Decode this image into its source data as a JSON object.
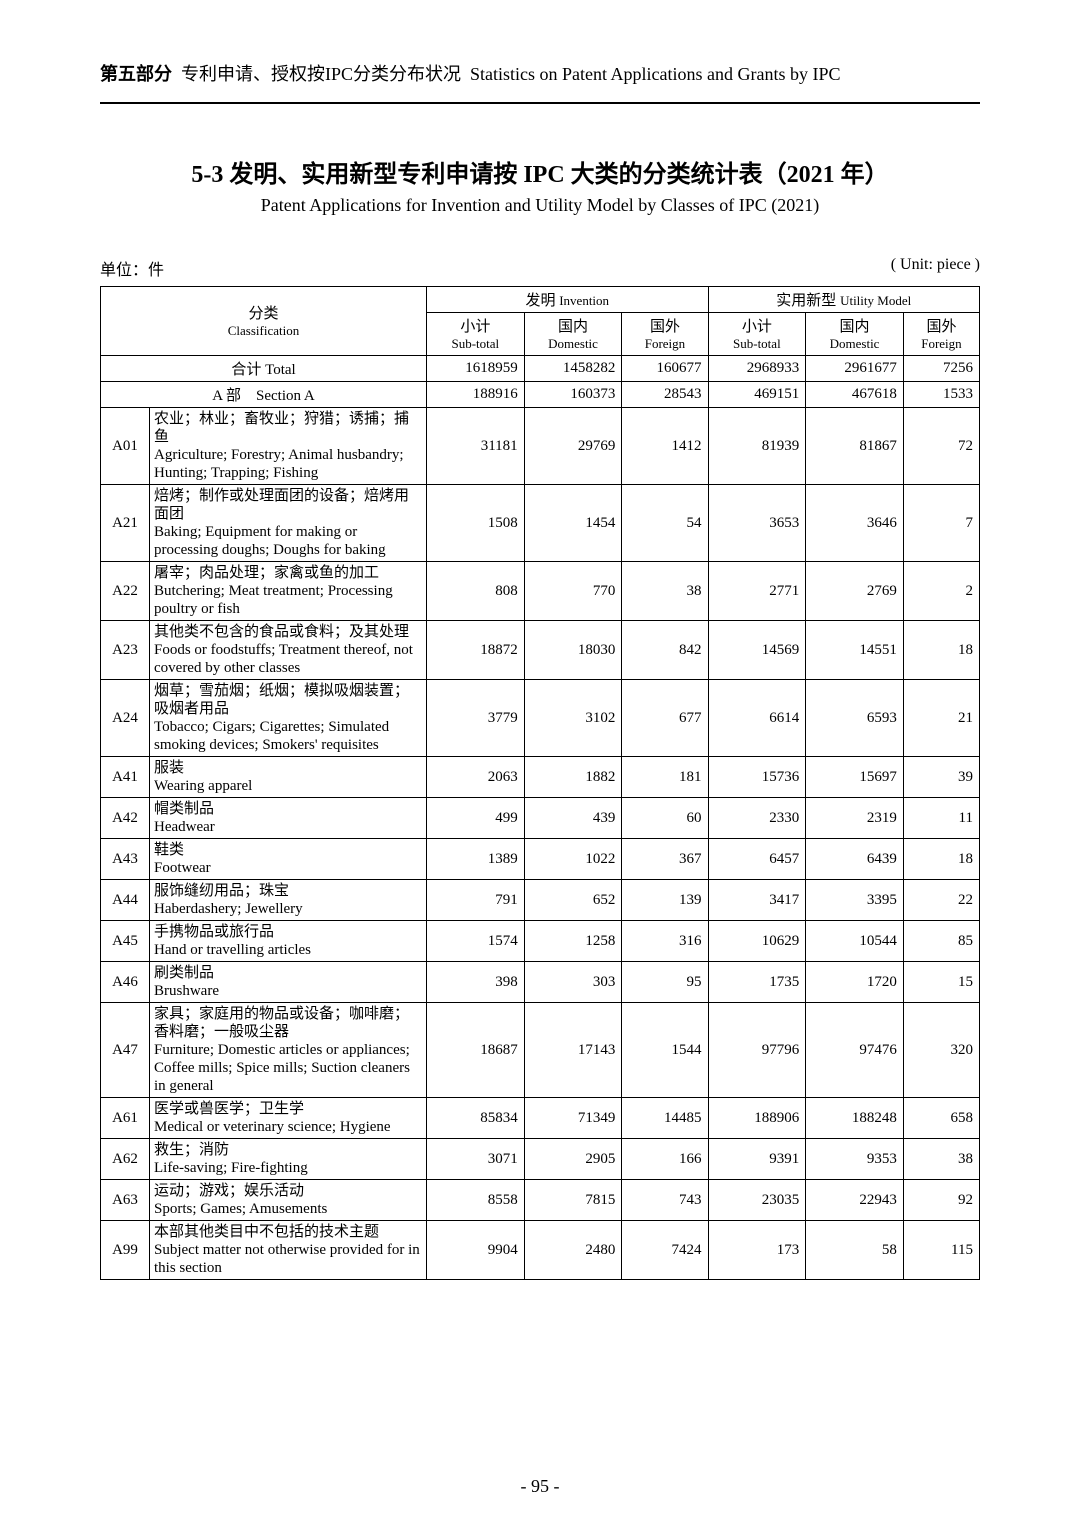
{
  "header": {
    "part_cn": "第五部分",
    "part_rest_cn": "专利申请、授权按IPC分类分布状况",
    "part_en": "Statistics on Patent Applications and Grants by IPC"
  },
  "title": {
    "number": "5-3",
    "cn": "发明、实用新型专利申请按 IPC 大类的分类统计表（2021 年）",
    "en": "Patent Applications for Invention and Utility Model by Classes of IPC (2021)"
  },
  "unit": {
    "left": "单位：件",
    "right": "( Unit: piece )"
  },
  "columns": {
    "classification_cn": "分类",
    "classification_en": "Classification",
    "invention_cn": "发明",
    "invention_en": "Invention",
    "utility_cn": "实用新型",
    "utility_en": "Utility Model",
    "subtotal_cn": "小计",
    "subtotal_en": "Sub-total",
    "domestic_cn": "国内",
    "domestic_en": "Domestic",
    "foreign_cn": "国外",
    "foreign_en": "Foreign"
  },
  "total": {
    "label_cn": "合计",
    "label_en": "Total",
    "inv_sub": "1618959",
    "inv_dom": "1458282",
    "inv_for": "160677",
    "um_sub": "2968933",
    "um_dom": "2961677",
    "um_for": "7256"
  },
  "section": {
    "label_cn": "A 部",
    "label_en": "Section A",
    "inv_sub": "188916",
    "inv_dom": "160373",
    "inv_for": "28543",
    "um_sub": "469151",
    "um_dom": "467618",
    "um_for": "1533"
  },
  "rows": [
    {
      "code": "A01",
      "cn": "农业；林业；畜牧业；狩猎；诱捕；捕鱼",
      "en": "Agriculture; Forestry; Animal husbandry; Hunting; Trapping; Fishing",
      "inv_sub": "31181",
      "inv_dom": "29769",
      "inv_for": "1412",
      "um_sub": "81939",
      "um_dom": "81867",
      "um_for": "72"
    },
    {
      "code": "A21",
      "cn": "焙烤；制作或处理面团的设备；焙烤用面团",
      "en": "Baking; Equipment for making or processing doughs; Doughs for baking",
      "inv_sub": "1508",
      "inv_dom": "1454",
      "inv_for": "54",
      "um_sub": "3653",
      "um_dom": "3646",
      "um_for": "7"
    },
    {
      "code": "A22",
      "cn": "屠宰；肉品处理；家禽或鱼的加工",
      "en": "Butchering; Meat treatment; Processing poultry or fish",
      "inv_sub": "808",
      "inv_dom": "770",
      "inv_for": "38",
      "um_sub": "2771",
      "um_dom": "2769",
      "um_for": "2"
    },
    {
      "code": "A23",
      "cn": "其他类不包含的食品或食料；及其处理",
      "en": "Foods or foodstuffs; Treatment thereof, not covered by other classes",
      "inv_sub": "18872",
      "inv_dom": "18030",
      "inv_for": "842",
      "um_sub": "14569",
      "um_dom": "14551",
      "um_for": "18"
    },
    {
      "code": "A24",
      "cn": "烟草；雪茄烟；纸烟；模拟吸烟装置；吸烟者用品",
      "en": "Tobacco; Cigars; Cigarettes; Simulated smoking devices; Smokers' requisites",
      "inv_sub": "3779",
      "inv_dom": "3102",
      "inv_for": "677",
      "um_sub": "6614",
      "um_dom": "6593",
      "um_for": "21"
    },
    {
      "code": "A41",
      "cn": "服装",
      "en": "Wearing apparel",
      "inv_sub": "2063",
      "inv_dom": "1882",
      "inv_for": "181",
      "um_sub": "15736",
      "um_dom": "15697",
      "um_for": "39"
    },
    {
      "code": "A42",
      "cn": "帽类制品",
      "en": "Headwear",
      "inv_sub": "499",
      "inv_dom": "439",
      "inv_for": "60",
      "um_sub": "2330",
      "um_dom": "2319",
      "um_for": "11"
    },
    {
      "code": "A43",
      "cn": "鞋类",
      "en": "Footwear",
      "inv_sub": "1389",
      "inv_dom": "1022",
      "inv_for": "367",
      "um_sub": "6457",
      "um_dom": "6439",
      "um_for": "18"
    },
    {
      "code": "A44",
      "cn": "服饰缝纫用品；珠宝",
      "en": "Haberdashery; Jewellery",
      "inv_sub": "791",
      "inv_dom": "652",
      "inv_for": "139",
      "um_sub": "3417",
      "um_dom": "3395",
      "um_for": "22"
    },
    {
      "code": "A45",
      "cn": "手携物品或旅行品",
      "en": "Hand or travelling articles",
      "inv_sub": "1574",
      "inv_dom": "1258",
      "inv_for": "316",
      "um_sub": "10629",
      "um_dom": "10544",
      "um_for": "85"
    },
    {
      "code": "A46",
      "cn": "刷类制品",
      "en": "Brushware",
      "inv_sub": "398",
      "inv_dom": "303",
      "inv_for": "95",
      "um_sub": "1735",
      "um_dom": "1720",
      "um_for": "15"
    },
    {
      "code": "A47",
      "cn": "家具；家庭用的物品或设备；咖啡磨；香料磨；一般吸尘器",
      "en": "Furniture; Domestic articles or appliances; Coffee mills; Spice mills; Suction cleaners in general",
      "inv_sub": "18687",
      "inv_dom": "17143",
      "inv_for": "1544",
      "um_sub": "97796",
      "um_dom": "97476",
      "um_for": "320"
    },
    {
      "code": "A61",
      "cn": "医学或兽医学；卫生学",
      "en": "Medical or veterinary science; Hygiene",
      "inv_sub": "85834",
      "inv_dom": "71349",
      "inv_for": "14485",
      "um_sub": "188906",
      "um_dom": "188248",
      "um_for": "658"
    },
    {
      "code": "A62",
      "cn": "救生；消防",
      "en": "Life-saving; Fire-fighting",
      "inv_sub": "3071",
      "inv_dom": "2905",
      "inv_for": "166",
      "um_sub": "9391",
      "um_dom": "9353",
      "um_for": "38"
    },
    {
      "code": "A63",
      "cn": "运动；游戏；娱乐活动",
      "en": "Sports; Games; Amusements",
      "inv_sub": "8558",
      "inv_dom": "7815",
      "inv_for": "743",
      "um_sub": "23035",
      "um_dom": "22943",
      "um_for": "92"
    },
    {
      "code": "A99",
      "cn": "本部其他类目中不包括的技术主题",
      "en": "Subject matter not otherwise provided for in this section",
      "inv_sub": "9904",
      "inv_dom": "2480",
      "inv_for": "7424",
      "um_sub": "173",
      "um_dom": "58",
      "um_for": "115"
    }
  ],
  "footer": {
    "page": "- 95 -"
  }
}
